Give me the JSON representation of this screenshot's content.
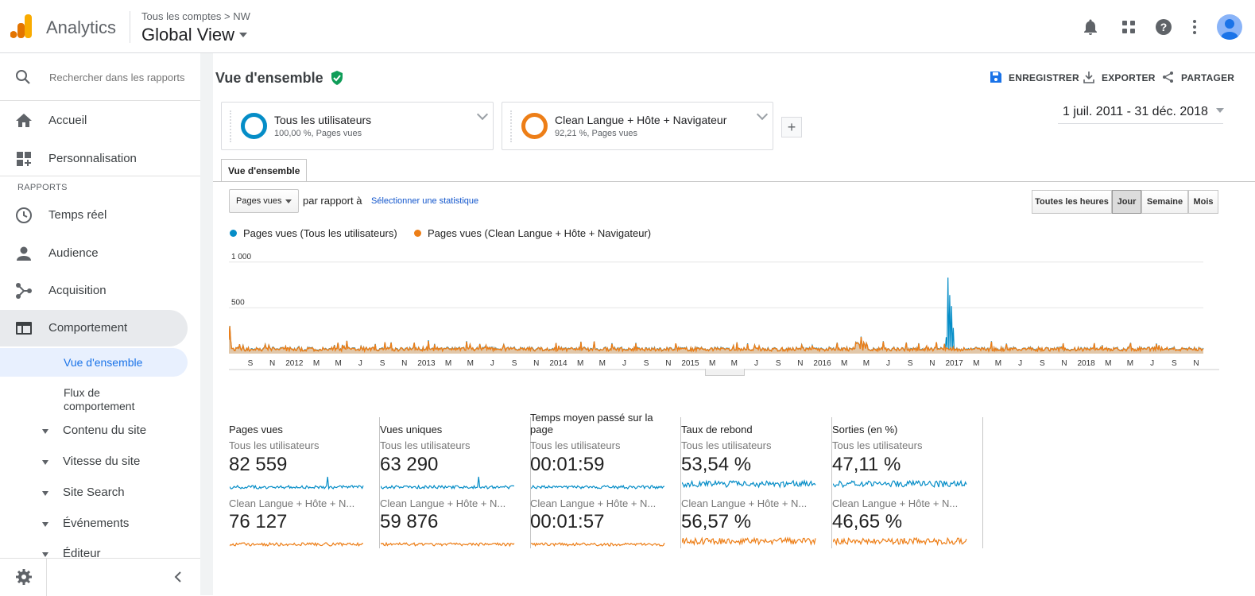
{
  "topbar": {
    "app_name": "Analytics",
    "breadcrumb": "Tous les comptes > NW",
    "view_name": "Global View"
  },
  "sidebar": {
    "search_placeholder": "Rechercher dans les rapports",
    "home": "Accueil",
    "customization": "Personnalisation",
    "reports_label": "RAPPORTS",
    "realtime": "Temps réel",
    "audience": "Audience",
    "acquisition": "Acquisition",
    "behavior": "Comportement",
    "behavior_sub": {
      "overview": "Vue d'ensemble",
      "flow_line1": "Flux de",
      "flow_line2": "comportement",
      "site_content": "Contenu du site",
      "site_speed": "Vitesse du site",
      "site_search": "Site Search",
      "events": "Événements",
      "publisher": "Éditeur"
    }
  },
  "header": {
    "title": "Vue d'ensemble",
    "save": "ENREGISTRER",
    "export": "EXPORTER",
    "share": "PARTAGER"
  },
  "segments": [
    {
      "name": "Tous les utilisateurs",
      "detail": "100,00 %, Pages vues",
      "color": "#058dc7"
    },
    {
      "name": "Clean Langue + Hôte + Navigateur",
      "detail": "92,21 %, Pages vues",
      "color": "#ed7e17"
    }
  ],
  "date_range": "1 juil. 2011 - 31 déc. 2018",
  "explorer": {
    "tab": "Vue d'ensemble",
    "metric": "Pages vues",
    "compare_text": "par rapport à",
    "select_metric": "Sélectionner une statistique",
    "granularity": [
      "Toutes les heures",
      "Jour",
      "Semaine",
      "Mois"
    ],
    "granularity_selected": "Jour"
  },
  "chart_data": {
    "type": "line",
    "ylim": [
      0,
      1000
    ],
    "y_ticks": [
      "1 000",
      "500"
    ],
    "x_ticks": [
      "S",
      "N",
      "2012",
      "M",
      "M",
      "J",
      "S",
      "N",
      "2013",
      "M",
      "M",
      "J",
      "S",
      "N",
      "2014",
      "M",
      "M",
      "J",
      "S",
      "N",
      "2015",
      "M",
      "M",
      "J",
      "S",
      "N",
      "2016",
      "M",
      "M",
      "J",
      "S",
      "N",
      "2017",
      "M",
      "M",
      "J",
      "S",
      "N",
      "2018",
      "M",
      "M",
      "J",
      "S",
      "N"
    ],
    "x_range": [
      "2011-07-01",
      "2018-12-31"
    ],
    "series": [
      {
        "name": "Pages vues (Tous les utilisateurs)",
        "color": "#058dc7",
        "baseline": 30,
        "peak": {
          "date": "2016-12-08",
          "value": 830
        }
      },
      {
        "name": "Pages vues (Clean Langue + Hôte + Navigateur)",
        "color": "#ed7e17",
        "baseline": 28,
        "peak": {
          "date": "2011-07-05",
          "value": 300
        }
      }
    ]
  },
  "kpis": [
    {
      "title": "Pages vues",
      "seg1": "Tous les utilisateurs",
      "val1": "82 559",
      "seg2": "Clean Langue + Hôte + N...",
      "val2": "76 127"
    },
    {
      "title": "Vues uniques",
      "seg1": "Tous les utilisateurs",
      "val1": "63 290",
      "seg2": "Clean Langue + Hôte + N...",
      "val2": "59 876"
    },
    {
      "title": "Temps moyen passé sur la page",
      "seg1": "Tous les utilisateurs",
      "val1": "00:01:59",
      "seg2": "Clean Langue + Hôte + N...",
      "val2": "00:01:57"
    },
    {
      "title": "Taux de rebond",
      "seg1": "Tous les utilisateurs",
      "val1": "53,54 %",
      "seg2": "Clean Langue + Hôte + N...",
      "val2": "56,57 %"
    },
    {
      "title": "Sorties (en %)",
      "seg1": "Tous les utilisateurs",
      "val1": "47,11 %",
      "seg2": "Clean Langue + Hôte + N...",
      "val2": "46,65 %"
    }
  ]
}
